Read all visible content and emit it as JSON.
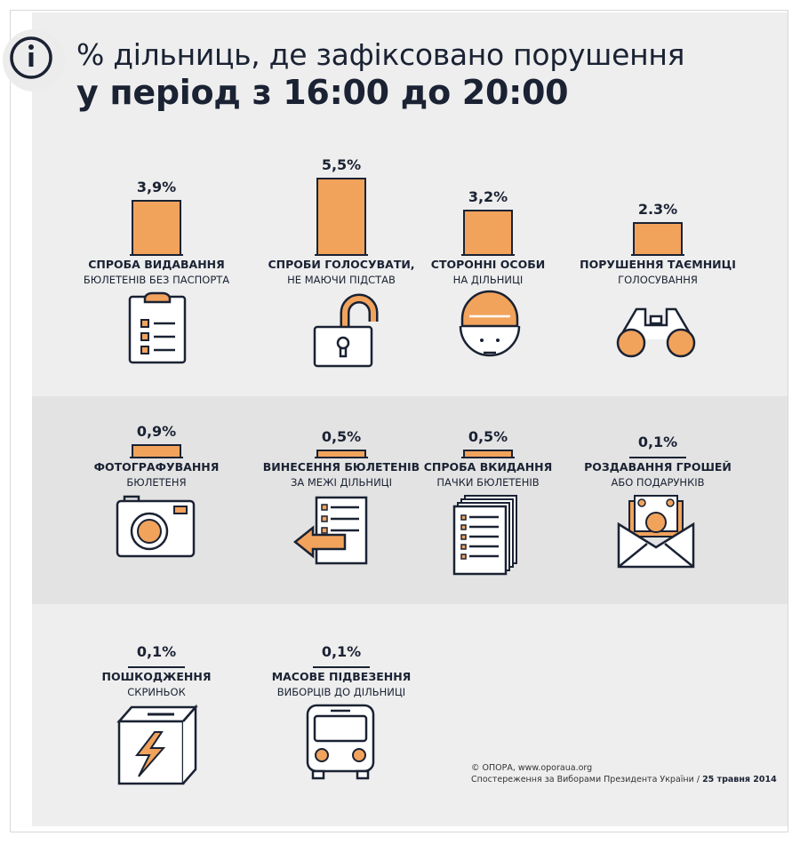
{
  "header": {
    "title_line1": "% дільниць, де зафіксовано порушення",
    "title_line2": "у період з 16:00 до 20:00"
  },
  "footer": {
    "copyright": "© ОПОРА, www.oporaua.org",
    "source": "Спостереження за Виборами Президента України /",
    "date": "25 травня 2014"
  },
  "colors": {
    "accent": "#f1a35c",
    "ink": "#1a2233"
  },
  "chart_data": {
    "type": "bar",
    "title": "% дільниць, де зафіксовано порушення у період з 16:00 до 20:00",
    "items": [
      {
        "value": 3.9,
        "value_label": "3,9%",
        "label1": "СПРОБА ВИДАВАННЯ",
        "label2": "БЮЛЕТЕНІВ БЕЗ ПАСПОРТА",
        "icon": "clipboard-icon"
      },
      {
        "value": 5.5,
        "value_label": "5,5%",
        "label1": "СПРОБИ ГОЛОСУВАТИ,",
        "label2": "НЕ МАЮЧИ ПІДСТАВ",
        "icon": "padlock-icon"
      },
      {
        "value": 3.2,
        "value_label": "3,2%",
        "label1": "СТОРОННІ ОСОБИ",
        "label2": "НА ДІЛЬНИЦІ",
        "icon": "worker-face-icon"
      },
      {
        "value": 2.3,
        "value_label": "2.3%",
        "label1": "ПОРУШЕННЯ ТАЄМНИЦІ",
        "label2": "ГОЛОСУВАННЯ",
        "icon": "binoculars-icon"
      },
      {
        "value": 0.9,
        "value_label": "0,9%",
        "label1": "ФОТОГРАФУВАННЯ",
        "label2": "БЮЛЕТЕНЯ",
        "icon": "camera-icon"
      },
      {
        "value": 0.5,
        "value_label": "0,5%",
        "label1": "ВИНЕСЕННЯ БЮЛЕТЕНІВ",
        "label2": "ЗА МЕЖІ ДІЛЬНИЦІ",
        "icon": "document-arrow-icon"
      },
      {
        "value": 0.5,
        "value_label": "0,5%",
        "label1": "СПРОБА ВКИДАННЯ",
        "label2": "ПАЧКИ БЮЛЕТЕНІВ",
        "icon": "ballot-stack-icon"
      },
      {
        "value": 0.1,
        "value_label": "0,1%",
        "label1": "РОЗДАВАННЯ ГРОШЕЙ",
        "label2": "АБО ПОДАРУНКІВ",
        "icon": "money-envelope-icon"
      },
      {
        "value": 0.1,
        "value_label": "0,1%",
        "label1": "ПОШКОДЖЕННЯ",
        "label2": "СКРИНЬОК",
        "icon": "damaged-box-icon"
      },
      {
        "value": 0.1,
        "value_label": "0,1%",
        "label1": "МАСОВЕ ПІДВЕЗЕННЯ",
        "label2": "ВИБОРЦІВ ДО ДІЛЬНИЦІ",
        "icon": "bus-icon"
      }
    ]
  }
}
